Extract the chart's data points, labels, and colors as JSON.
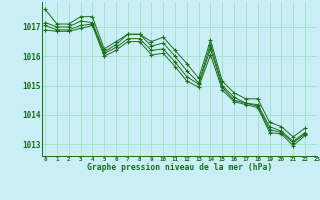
{
  "background_color": "#caeef5",
  "grid_color": "#99ddbb",
  "line_color": "#1a6e1a",
  "xlabel": "Graphe pression niveau de la mer (hPa)",
  "ylim": [
    1012.6,
    1017.85
  ],
  "xlim": [
    -0.3,
    23
  ],
  "yticks": [
    1013,
    1014,
    1015,
    1016,
    1017
  ],
  "xticks": [
    0,
    1,
    2,
    3,
    4,
    5,
    6,
    7,
    8,
    9,
    10,
    11,
    12,
    13,
    14,
    15,
    16,
    17,
    18,
    19,
    20,
    21,
    22,
    23
  ],
  "series": [
    [
      1017.6,
      1017.1,
      1017.1,
      1017.35,
      1017.35,
      1016.25,
      1016.5,
      1016.75,
      1016.75,
      1016.5,
      1016.65,
      1016.2,
      1015.75,
      1015.25,
      1016.55,
      1015.15,
      1014.75,
      1014.55,
      1014.55,
      1013.75,
      1013.6,
      1013.25,
      1013.55
    ],
    [
      1017.15,
      1017.0,
      1017.0,
      1017.2,
      1017.15,
      1016.15,
      1016.4,
      1016.75,
      1016.75,
      1016.35,
      1016.45,
      1016.0,
      1015.5,
      1015.1,
      1016.4,
      1015.0,
      1014.6,
      1014.4,
      1014.35,
      1013.6,
      1013.45,
      1013.1,
      1013.4
    ],
    [
      1017.05,
      1016.9,
      1016.9,
      1017.05,
      1017.1,
      1016.1,
      1016.3,
      1016.6,
      1016.6,
      1016.2,
      1016.25,
      1015.8,
      1015.3,
      1015.05,
      1016.25,
      1014.95,
      1014.5,
      1014.4,
      1014.3,
      1013.5,
      1013.4,
      1013.05,
      1013.35
    ],
    [
      1016.9,
      1016.85,
      1016.85,
      1016.95,
      1017.05,
      1016.0,
      1016.2,
      1016.5,
      1016.5,
      1016.05,
      1016.1,
      1015.65,
      1015.15,
      1014.95,
      1016.05,
      1014.85,
      1014.45,
      1014.35,
      1014.25,
      1013.4,
      1013.35,
      1012.95,
      1013.3
    ]
  ]
}
